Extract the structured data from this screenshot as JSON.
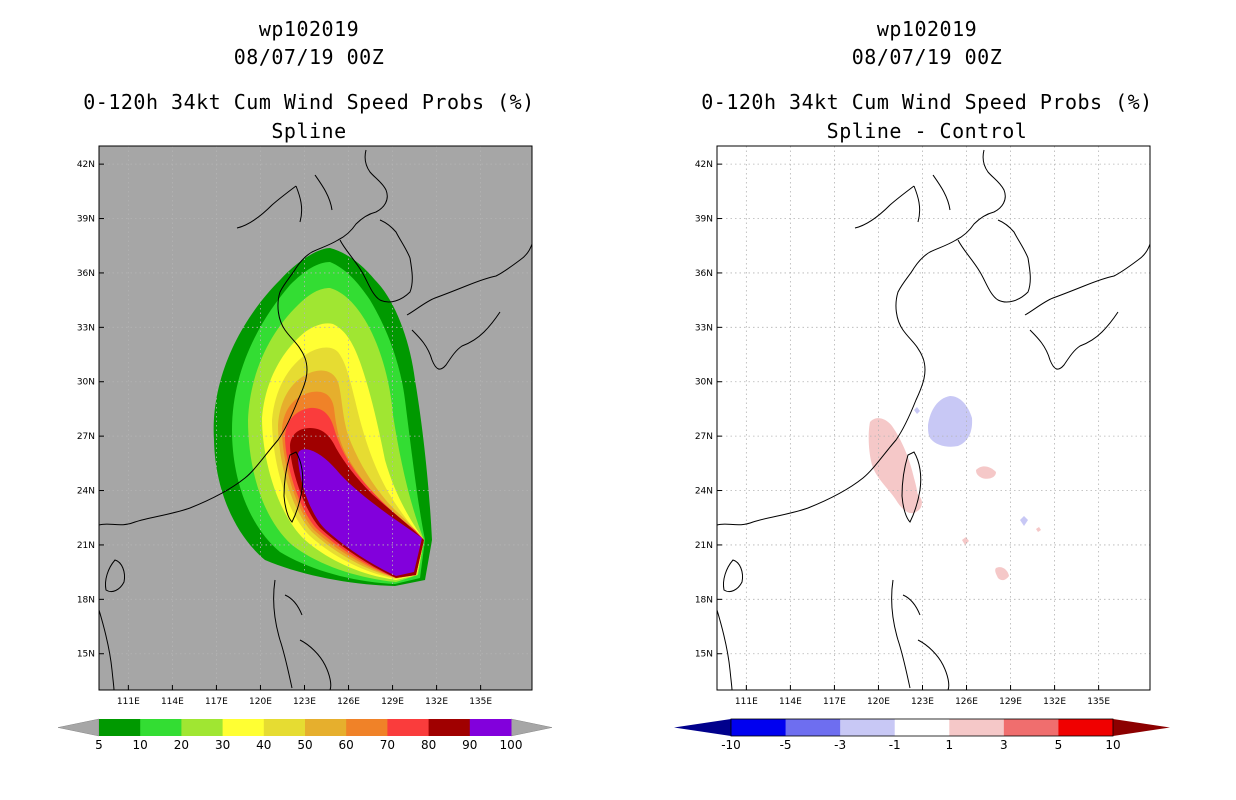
{
  "left_panel": {
    "title_line1": "wp102019",
    "title_line2": "08/07/19 00Z",
    "title_line3": "0-120h 34kt Cum Wind Speed Probs (%)",
    "title_line4": "Spline"
  },
  "right_panel": {
    "title_line1": "wp102019",
    "title_line2": "08/07/19 00Z",
    "title_line3": "0-120h 34kt Cum Wind Speed Probs (%)",
    "title_line4": "Spline - Control"
  },
  "chart_data": [
    {
      "type": "heatmap",
      "title": "0-120h 34kt Cum Wind Speed Probs (%)",
      "subtitle": "Spline",
      "storm": "wp102019",
      "init_time": "08/07/19 00Z",
      "x_ticks": [
        "111E",
        "114E",
        "117E",
        "120E",
        "123E",
        "126E",
        "129E",
        "132E",
        "135E"
      ],
      "y_ticks": [
        "42N",
        "39N",
        "36N",
        "33N",
        "30N",
        "27N",
        "24N",
        "21N",
        "18N",
        "15N"
      ],
      "lon_range": [
        109,
        138.5
      ],
      "lat_range": [
        13,
        43
      ],
      "colorbar": {
        "labels": [
          "5",
          "10",
          "20",
          "30",
          "40",
          "50",
          "60",
          "70",
          "80",
          "90",
          "100"
        ],
        "colors": [
          "#009900",
          "#33dd33",
          "#a0e632",
          "#ffff33",
          "#e6dc32",
          "#e6af2d",
          "#f08228",
          "#fa3c3c",
          "#a00000",
          "#8200dc"
        ]
      },
      "missing_color": "#a6a6a6"
    },
    {
      "type": "heatmap",
      "title": "0-120h 34kt Cum Wind Speed Probs (%)",
      "subtitle": "Spline - Control",
      "storm": "wp102019",
      "init_time": "08/07/19 00Z",
      "x_ticks": [
        "111E",
        "114E",
        "117E",
        "120E",
        "123E",
        "126E",
        "129E",
        "132E",
        "135E"
      ],
      "y_ticks": [
        "42N",
        "39N",
        "36N",
        "33N",
        "30N",
        "27N",
        "24N",
        "21N",
        "18N",
        "15N"
      ],
      "lon_range": [
        109,
        138.5
      ],
      "lat_range": [
        13,
        43
      ],
      "colorbar": {
        "labels": [
          "-10",
          "-5",
          "-3",
          "-1",
          "1",
          "3",
          "5",
          "10"
        ],
        "colors": [
          "#00008c",
          "#0000f0",
          "#6e6ef0",
          "#c8c8f5",
          "#ffffff",
          "#f5c8c8",
          "#f06e6e",
          "#f00000",
          "#8c0000"
        ]
      }
    }
  ]
}
